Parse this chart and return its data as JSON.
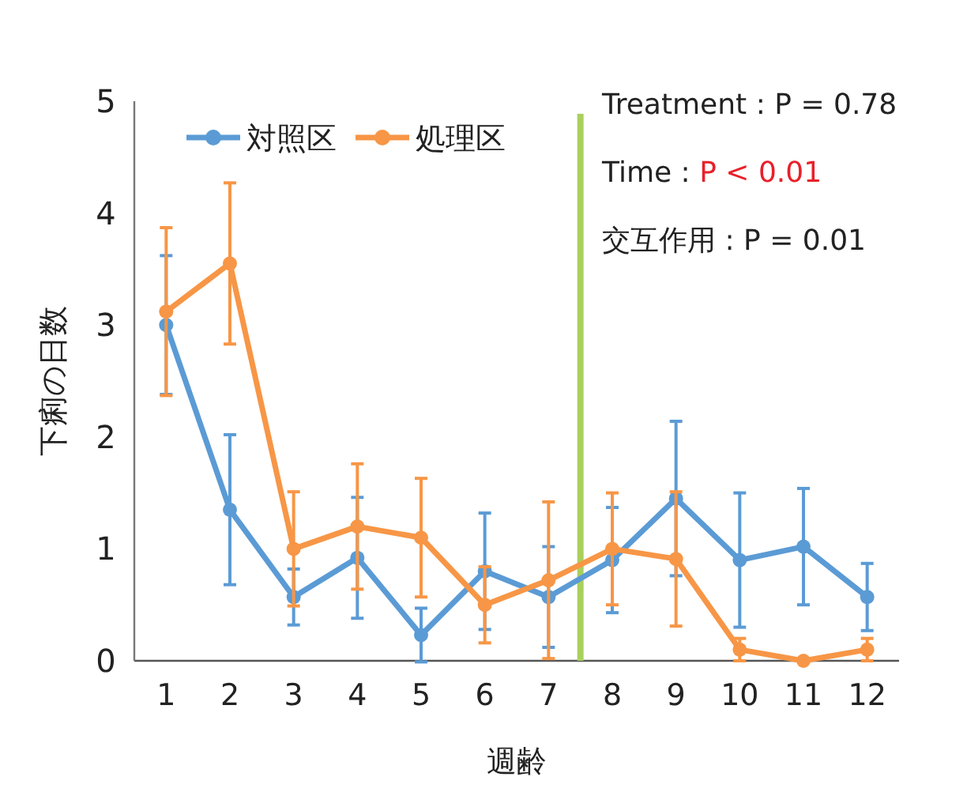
{
  "chart_data": {
    "type": "line",
    "xlabel": "週齢",
    "ylabel": "下痢の日数",
    "x": [
      1,
      2,
      3,
      4,
      5,
      6,
      7,
      8,
      9,
      10,
      11,
      12
    ],
    "xlim": [
      0.5,
      12.5
    ],
    "xticks": [
      1,
      2,
      3,
      4,
      5,
      6,
      7,
      8,
      9,
      10,
      11,
      12
    ],
    "ref_lines": [
      {
        "axis": "x",
        "value": 7.5,
        "color": "#a9d05c"
      }
    ],
    "series": [
      {
        "name": "対照区",
        "color": "#5b9bd5",
        "values": [
          3.0,
          1.35,
          0.57,
          0.92,
          0.23,
          0.8,
          0.57,
          0.9,
          1.45,
          0.9,
          1.02,
          0.57
        ],
        "errors": [
          0.62,
          0.67,
          0.25,
          0.54,
          0.24,
          0.52,
          0.45,
          0.47,
          0.69,
          0.6,
          0.52,
          0.3
        ]
      },
      {
        "name": "処理区",
        "color": "#f79646",
        "values": [
          3.12,
          3.55,
          1.0,
          1.2,
          1.1,
          0.5,
          0.72,
          1.0,
          0.91,
          0.1,
          0.0,
          0.1
        ],
        "errors": [
          0.75,
          0.72,
          0.51,
          0.56,
          0.53,
          0.34,
          0.7,
          0.5,
          0.6,
          0.1,
          null,
          0.1
        ]
      }
    ],
    "ylim": [
      0,
      5
    ],
    "yticks": [
      0,
      1,
      2,
      3,
      4,
      5
    ],
    "annotations": [
      "Treatment : P = 0.78",
      "Time : P < 0.01",
      "交互作用 : P = 0.01"
    ],
    "legend": "top left",
    "marker": "circle",
    "grid": false
  }
}
